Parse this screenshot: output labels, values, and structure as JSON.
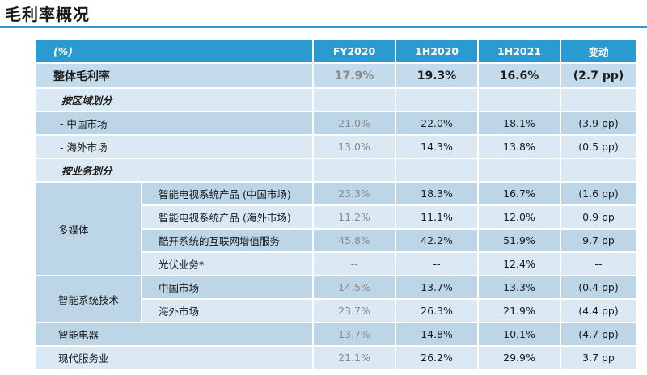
{
  "title": "毛利率概况",
  "header": {
    "label": "(%)",
    "cols": [
      "FY2020",
      "1H2020",
      "1H2021",
      "变动"
    ]
  },
  "overall": {
    "label": "整体毛利率",
    "values": [
      "17.9%",
      "19.3%",
      "16.6%",
      "(2.7 pp)"
    ]
  },
  "region_section": {
    "label": "按区域划分",
    "rows": [
      {
        "label": "- 中国市场",
        "values": [
          "21.0%",
          "22.0%",
          "18.1%",
          "(3.9 pp)"
        ]
      },
      {
        "label": "- 海外市场",
        "values": [
          "13.0%",
          "14.3%",
          "13.8%",
          "(0.5 pp)"
        ]
      }
    ]
  },
  "business_section": {
    "label": "按业务划分",
    "multimedia": {
      "label": "多媒体",
      "rows": [
        {
          "label": "智能电视系统产品 (中国市场)",
          "values": [
            "23.3%",
            "18.3%",
            "16.7%",
            "(1.6 pp)"
          ]
        },
        {
          "label": "智能电视系统产品 (海外市场)",
          "values": [
            "11.2%",
            "11.1%",
            "12.0%",
            "0.9 pp"
          ]
        },
        {
          "label": "酷开系统的互联网增值服务",
          "values": [
            "45.8%",
            "42.2%",
            "51.9%",
            "9.7 pp"
          ]
        },
        {
          "label": "光伏业务*",
          "values": [
            "--",
            "--",
            "12.4%",
            "--"
          ]
        }
      ]
    },
    "smart_system": {
      "label": "智能系统技术",
      "rows": [
        {
          "label": "中国市场",
          "values": [
            "14.5%",
            "13.7%",
            "13.3%",
            "(0.4 pp)"
          ]
        },
        {
          "label": "海外市场",
          "values": [
            "23.7%",
            "26.3%",
            "21.9%",
            "(4.4 pp)"
          ]
        }
      ]
    },
    "appliances": {
      "label": "智能电器",
      "values": [
        "13.7%",
        "14.8%",
        "10.1%",
        "(4.7 pp)"
      ]
    },
    "services": {
      "label": "现代服务业",
      "values": [
        "21.1%",
        "26.2%",
        "29.9%",
        "3.7 pp"
      ]
    }
  }
}
